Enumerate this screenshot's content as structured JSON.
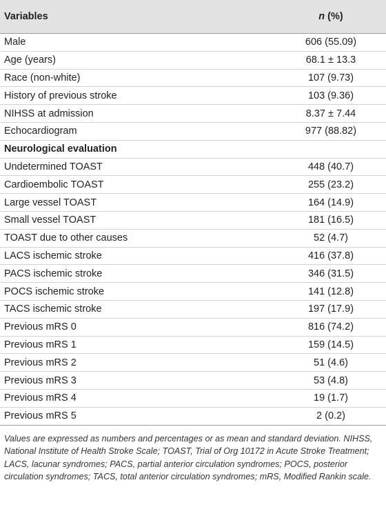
{
  "header": {
    "variables": "Variables",
    "n": "n",
    "pct": " (%)"
  },
  "rows": [
    {
      "label": "Male",
      "value": "606 (55.09)"
    },
    {
      "label": "Age (years)",
      "value": "68.1 ± 13.3"
    },
    {
      "label": "Race (non-white)",
      "value": "107 (9.73)"
    },
    {
      "label": "History of previous stroke",
      "value": "103 (9.36)"
    },
    {
      "label": "NIHSS at admission",
      "value": "8.37 ± 7.44"
    },
    {
      "label": "Echocardiogram",
      "value": "977 (88.82)"
    },
    {
      "label": "Neurological evaluation",
      "value": ""
    },
    {
      "label": "Undetermined TOAST",
      "value": "448 (40.7)"
    },
    {
      "label": "Cardioembolic TOAST",
      "value": "255 (23.2)"
    },
    {
      "label": "Large vessel TOAST",
      "value": "164 (14.9)"
    },
    {
      "label": "Small vessel TOAST",
      "value": "181 (16.5)"
    },
    {
      "label": "TOAST due to other causes",
      "value": "52 (4.7)"
    },
    {
      "label": "LACS ischemic stroke",
      "value": "416 (37.8)"
    },
    {
      "label": "PACS ischemic stroke",
      "value": "346 (31.5)"
    },
    {
      "label": "POCS ischemic stroke",
      "value": "141 (12.8)"
    },
    {
      "label": "TACS ischemic stroke",
      "value": "197 (17.9)"
    },
    {
      "label": "Previous mRS 0",
      "value": "816 (74.2)"
    },
    {
      "label": "Previous mRS 1",
      "value": "159 (14.5)"
    },
    {
      "label": "Previous mRS 2",
      "value": "51 (4.6)"
    },
    {
      "label": "Previous mRS 3",
      "value": "53 (4.8)"
    },
    {
      "label": "Previous mRS 4",
      "value": "19 (1.7)"
    },
    {
      "label": "Previous mRS 5",
      "value": "2 (0.2)"
    }
  ],
  "footnote": "Values are expressed as numbers and percentages or as mean and standard deviation. NIHSS, National Institute of Health Stroke Scale; TOAST, Trial of Org 10172 in Acute Stroke Treatment; LACS, lacunar syndromes; PACS, partial anterior circulation syndromes; POCS, posterior circulation syndromes; TACS, total anterior circulation syndromes; mRS, Modified Rankin scale."
}
